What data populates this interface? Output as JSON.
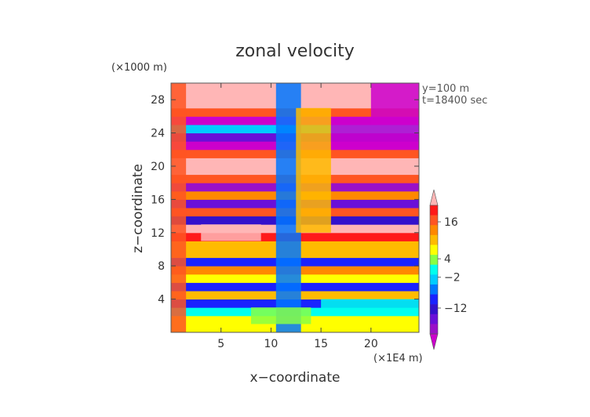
{
  "chart_data": {
    "type": "heatmap",
    "title": "zonal velocity",
    "xlabel": "x−coordinate",
    "ylabel": "z−coordinate",
    "x_unit": "(×1E4 m)",
    "y_unit": "(×1000 m)",
    "annotations": [
      "y=100 m",
      "t=18400 sec"
    ],
    "xlim": [
      0,
      24.8
    ],
    "ylim": [
      0,
      30
    ],
    "x_ticks": [
      5,
      10,
      15,
      20
    ],
    "y_ticks": [
      4,
      8,
      12,
      16,
      20,
      24,
      28
    ],
    "colorbar": {
      "label_values": [
        16,
        4,
        -2,
        -12
      ],
      "tick_labels": [
        "16",
        "4",
        "−2",
        "−12"
      ],
      "levels": [
        {
          "color": "#ffb6b6"
        },
        {
          "color": "#ff1a1a"
        },
        {
          "color": "#ff5522"
        },
        {
          "color": "#ff8800"
        },
        {
          "color": "#ffbb00"
        },
        {
          "color": "#ffff00"
        },
        {
          "color": "#88ff44"
        },
        {
          "color": "#00ffee"
        },
        {
          "color": "#00ccff"
        },
        {
          "color": "#0077ff"
        },
        {
          "color": "#1a22ff"
        },
        {
          "color": "#3311cc"
        },
        {
          "color": "#6a10d8"
        },
        {
          "color": "#9a10c8"
        },
        {
          "color": "#cc00cc"
        }
      ]
    },
    "z_bands": [
      {
        "z_bottom": 0,
        "z_top": 2,
        "level": 5
      },
      {
        "z_bottom": 2,
        "z_top": 3,
        "level": 7
      },
      {
        "z_bottom": 3,
        "z_top": 4,
        "level": 10
      },
      {
        "z_bottom": 4,
        "z_top": 5,
        "level": 4
      },
      {
        "z_bottom": 5,
        "z_top": 6,
        "level": 10
      },
      {
        "z_bottom": 6,
        "z_top": 7,
        "level": 5
      },
      {
        "z_bottom": 7,
        "z_top": 8,
        "level": 3
      },
      {
        "z_bottom": 8,
        "z_top": 9,
        "level": 10
      },
      {
        "z_bottom": 9,
        "z_top": 11,
        "level": 4
      },
      {
        "z_bottom": 11,
        "z_top": 12,
        "level": 1
      },
      {
        "z_bottom": 12,
        "z_top": 13,
        "level": 0
      },
      {
        "z_bottom": 13,
        "z_top": 14,
        "level": 11
      },
      {
        "z_bottom": 14,
        "z_top": 15,
        "level": 2
      },
      {
        "z_bottom": 15,
        "z_top": 16,
        "level": 12
      },
      {
        "z_bottom": 16,
        "z_top": 17,
        "level": 3
      },
      {
        "z_bottom": 17,
        "z_top": 18,
        "level": 13
      },
      {
        "z_bottom": 18,
        "z_top": 19,
        "level": 2
      },
      {
        "z_bottom": 19,
        "z_top": 21,
        "level": 0
      },
      {
        "z_bottom": 21,
        "z_top": 22,
        "level": 2
      },
      {
        "z_bottom": 22,
        "z_top": 23,
        "level": 14
      },
      {
        "z_bottom": 23,
        "z_top": 24,
        "level": 12
      },
      {
        "z_bottom": 24,
        "z_top": 25,
        "level": 8
      },
      {
        "z_bottom": 25,
        "z_top": 26,
        "level": 14
      },
      {
        "z_bottom": 26,
        "z_top": 27,
        "level": 2
      },
      {
        "z_bottom": 27,
        "z_top": 30,
        "level": 0
      }
    ],
    "regions": [
      {
        "x": [
          0,
          1.5
        ],
        "z": [
          0,
          30
        ],
        "level": 2
      },
      {
        "x": [
          10.5,
          13
        ],
        "z": [
          0,
          30
        ],
        "level": 9
      },
      {
        "x": [
          12.5,
          16
        ],
        "z": [
          12,
          27
        ],
        "level": 4
      },
      {
        "x": [
          20,
          24.8
        ],
        "z": [
          25,
          30
        ],
        "level": 14
      },
      {
        "x": [
          16,
          24.8
        ],
        "z": [
          22,
          25
        ],
        "level": 14
      },
      {
        "x": [
          3,
          9
        ],
        "z": [
          11,
          13
        ],
        "level": 0
      },
      {
        "x": [
          8,
          14
        ],
        "z": [
          1,
          3
        ],
        "level": 6
      },
      {
        "x": [
          15,
          24.8
        ],
        "z": [
          2,
          4
        ],
        "level": 7
      }
    ]
  }
}
